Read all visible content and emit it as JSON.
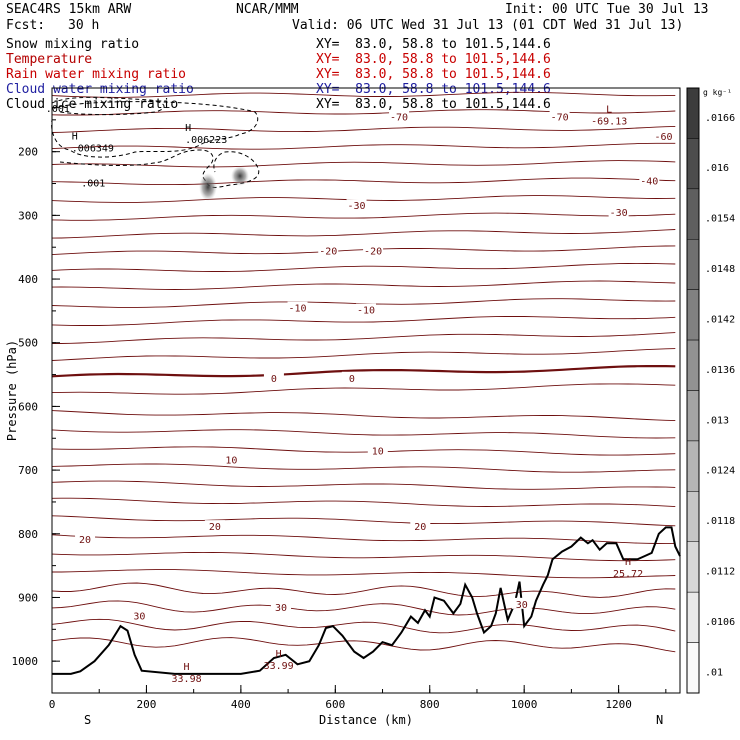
{
  "header": {
    "model": "SEAC4RS 15km ARW",
    "org": "NCAR/MMM",
    "init": "Init: 00 UTC Tue 30 Jul 13",
    "fcst_label": "Fcst:",
    "fcst_value": "30 h",
    "valid": "Valid: 06 UTC Wed 31 Jul 13 (01 CDT Wed 31 Jul 13)"
  },
  "fields": [
    {
      "name": "Snow mixing ratio",
      "xy": "XY=  83.0, 58.8 to 101.5,144.6",
      "color": "#000000"
    },
    {
      "name": "Temperature",
      "xy": "XY=  83.0, 58.8 to 101.5,144.6",
      "color": "#b40000"
    },
    {
      "name": "Rain water mixing ratio",
      "xy": "XY=  83.0, 58.8 to 101.5,144.6",
      "color": "#c80000"
    },
    {
      "name": "Cloud water mixing ratio",
      "xy": "XY=  83.0, 58.8 to 101.5,144.6",
      "color": "#1e1ea0"
    },
    {
      "name": "Cloud ice mixing ratio",
      "xy": "XY=  83.0, 58.8 to 101.5,144.6",
      "color": "#000000"
    }
  ],
  "chart_data": {
    "type": "contour",
    "xlabel": "Distance (km)",
    "ylabel": "Pressure (hPa)",
    "xlim": [
      0,
      1330
    ],
    "ylim": [
      1050,
      100
    ],
    "x_ticks": [
      0,
      200,
      400,
      600,
      800,
      1000,
      1200
    ],
    "y_ticks": [
      200,
      300,
      400,
      500,
      600,
      700,
      800,
      900,
      1000
    ],
    "x_end_labels": [
      "S",
      "N"
    ],
    "colorbar": {
      "unit": "g kg⁻¹",
      "labels": [
        ".0166",
        ".016",
        ".0154",
        ".0148",
        ".0142",
        ".0136",
        ".013",
        ".0124",
        ".0118",
        ".0112",
        ".0106",
        ".01"
      ]
    },
    "temperature_labels": [
      {
        "text": "-70",
        "x": 735,
        "p": 145
      },
      {
        "text": "-70",
        "x": 1075,
        "p": 145
      },
      {
        "text": "-60",
        "x": 1295,
        "p": 175
      },
      {
        "text": "-40",
        "x": 1265,
        "p": 245
      },
      {
        "text": "-30",
        "x": 645,
        "p": 284
      },
      {
        "text": "-30",
        "x": 1200,
        "p": 295
      },
      {
        "text": "-20",
        "x": 585,
        "p": 355
      },
      {
        "text": "-20",
        "x": 680,
        "p": 355
      },
      {
        "text": "-10",
        "x": 520,
        "p": 445
      },
      {
        "text": "-10",
        "x": 665,
        "p": 448
      },
      {
        "text": "0",
        "x": 470,
        "p": 555
      },
      {
        "text": "0",
        "x": 635,
        "p": 555
      },
      {
        "text": "10",
        "x": 380,
        "p": 683
      },
      {
        "text": "10",
        "x": 690,
        "p": 669
      },
      {
        "text": "20",
        "x": 70,
        "p": 808
      },
      {
        "text": "20",
        "x": 345,
        "p": 788
      },
      {
        "text": "20",
        "x": 780,
        "p": 788
      },
      {
        "text": "30",
        "x": 185,
        "p": 928
      },
      {
        "text": "30",
        "x": 485,
        "p": 915
      },
      {
        "text": "30",
        "x": 995,
        "p": 910
      }
    ],
    "temperature_extrema": [
      {
        "type": "L",
        "value": "-69.13",
        "x": 1180,
        "p": 145
      },
      {
        "type": "H",
        "value": "33.98",
        "x": 285,
        "p": 1020
      },
      {
        "type": "H",
        "value": "33.99",
        "x": 480,
        "p": 1000
      },
      {
        "type": "H",
        "value": "25.72",
        "x": 1220,
        "p": 855
      }
    ],
    "ice_labels": [
      {
        "type": "H",
        "value": ".006349",
        "x": 80,
        "p": 190
      },
      {
        "type": "H",
        "value": ".006223",
        "x": 320,
        "p": 177
      },
      {
        "type": "",
        "value": ".001",
        "x": 100,
        "p": 245
      },
      {
        "type": "",
        "value": ".001",
        "x": 25,
        "p": 128
      }
    ],
    "terrain": [
      [
        0,
        1020
      ],
      [
        40,
        1020
      ],
      [
        60,
        1016
      ],
      [
        90,
        1000
      ],
      [
        120,
        975
      ],
      [
        145,
        945
      ],
      [
        160,
        952
      ],
      [
        175,
        990
      ],
      [
        190,
        1015
      ],
      [
        260,
        1020
      ],
      [
        330,
        1020
      ],
      [
        400,
        1020
      ],
      [
        440,
        1015
      ],
      [
        470,
        995
      ],
      [
        495,
        990
      ],
      [
        520,
        1005
      ],
      [
        545,
        1000
      ],
      [
        565,
        975
      ],
      [
        580,
        948
      ],
      [
        595,
        945
      ],
      [
        615,
        960
      ],
      [
        640,
        985
      ],
      [
        660,
        995
      ],
      [
        680,
        985
      ],
      [
        700,
        970
      ],
      [
        720,
        975
      ],
      [
        740,
        955
      ],
      [
        760,
        930
      ],
      [
        775,
        940
      ],
      [
        790,
        920
      ],
      [
        800,
        930
      ],
      [
        810,
        900
      ],
      [
        830,
        905
      ],
      [
        850,
        925
      ],
      [
        865,
        910
      ],
      [
        875,
        880
      ],
      [
        890,
        900
      ],
      [
        900,
        925
      ],
      [
        915,
        955
      ],
      [
        930,
        945
      ],
      [
        940,
        925
      ],
      [
        950,
        885
      ],
      [
        965,
        935
      ],
      [
        980,
        910
      ],
      [
        990,
        875
      ],
      [
        1000,
        945
      ],
      [
        1015,
        930
      ],
      [
        1025,
        905
      ],
      [
        1040,
        880
      ],
      [
        1050,
        865
      ],
      [
        1060,
        840
      ],
      [
        1080,
        828
      ],
      [
        1100,
        820
      ],
      [
        1120,
        806
      ],
      [
        1135,
        815
      ],
      [
        1145,
        810
      ],
      [
        1160,
        825
      ],
      [
        1175,
        815
      ],
      [
        1195,
        815
      ],
      [
        1210,
        840
      ],
      [
        1225,
        840
      ],
      [
        1240,
        840
      ],
      [
        1255,
        835
      ],
      [
        1270,
        830
      ],
      [
        1285,
        800
      ],
      [
        1300,
        790
      ],
      [
        1312,
        790
      ],
      [
        1320,
        820
      ],
      [
        1330,
        835
      ]
    ]
  }
}
